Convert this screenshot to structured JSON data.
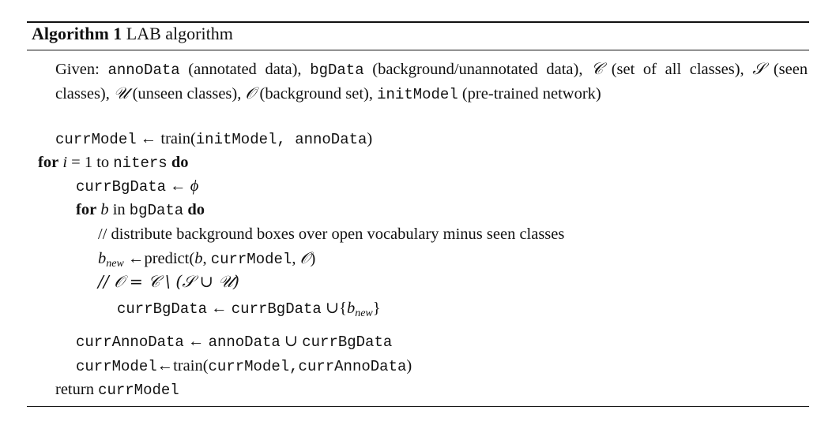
{
  "algorithm": {
    "label": "Algorithm 1",
    "name": "LAB algorithm"
  },
  "given": {
    "prefix": "Given:",
    "annoData": "annoData",
    "annoData_desc": "(annotated data),",
    "bgData": "bgData",
    "bgData_desc": "(background/unannotated data),",
    "C": "𝒞",
    "C_desc": "(set of all classes),",
    "S": "𝒮",
    "S_desc": "(seen classes),",
    "U": "𝒰",
    "U_desc": "(unseen classes),",
    "O": "𝒪",
    "O_desc": "(background set),",
    "initModel": "initModel",
    "initModel_desc": "(pre-trained network)"
  },
  "lines": {
    "l1_var": "currModel",
    "l1_arrow": "←",
    "l1_fn": "train(",
    "l1_args": "initModel, annoData",
    "l1_close": ")",
    "l2_for": "for",
    "l2_i": "i",
    "l2_eq": " = 1 to ",
    "l2_niters": "niters",
    "l2_do": "do",
    "l3_var": "currBgData",
    "l3_arrow": "←",
    "l3_phi": "ϕ",
    "l4_for": "for",
    "l4_b": "b",
    "l4_in": " in ",
    "l4_bgData": "bgData",
    "l4_do": "do",
    "l5_comment": "// distribute background boxes over open vocabulary minus seen classes",
    "l6_b": "b",
    "l6_sub": "new",
    "l6_arrow": "←",
    "l6_fn": "predict(",
    "l6_arg_b": "b",
    "l6_comma": ", ",
    "l6_model": "currModel",
    "l6_comma2": ", ",
    "l6_O": "𝒪",
    "l6_close": ")",
    "l7_comment": "// 𝒪 = 𝒞 \\ (𝒮 ∪ 𝒰)",
    "l8_var": "currBgData",
    "l8_arrow": "←",
    "l8_var2": "currBgData",
    "l8_union": "∪{",
    "l8_b": "b",
    "l8_sub": "new",
    "l8_close": "}",
    "l9_var": "currAnnoData",
    "l9_arrow": "←",
    "l9_anno": "annoData",
    "l9_union": "∪",
    "l9_bg": "currBgData",
    "l10_var": "currModel",
    "l10_arrow": "←",
    "l10_fn": "train(",
    "l10_args": "currModel,currAnnoData",
    "l10_close": ")",
    "l11_return": "return",
    "l11_var": "currModel"
  }
}
